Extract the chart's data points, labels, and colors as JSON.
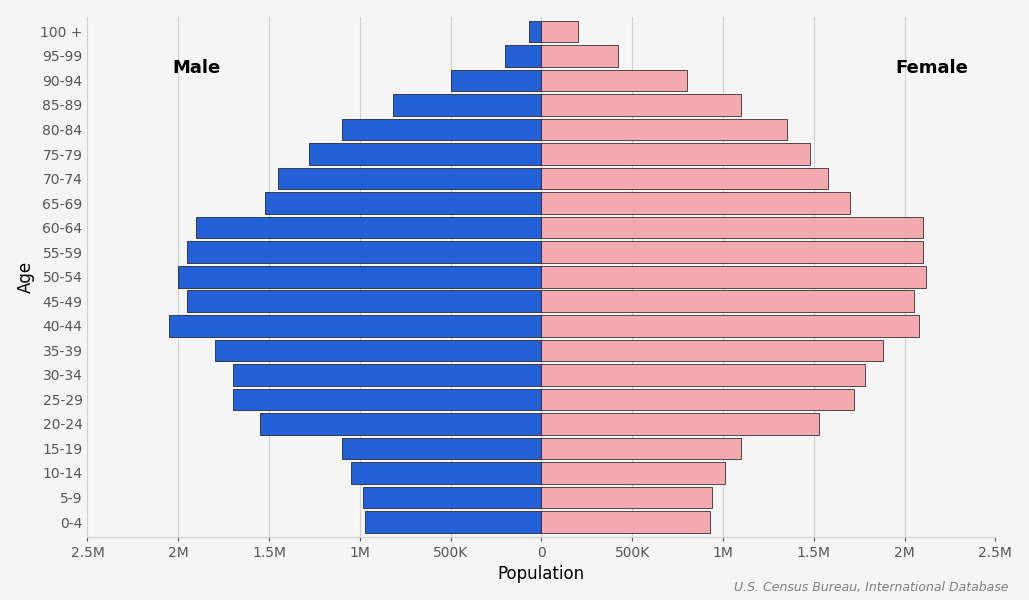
{
  "age_groups": [
    "0-4",
    "5-9",
    "10-14",
    "15-19",
    "20-24",
    "25-29",
    "30-34",
    "35-39",
    "40-44",
    "45-49",
    "50-54",
    "55-59",
    "60-64",
    "65-69",
    "70-74",
    "75-79",
    "80-84",
    "85-89",
    "90-94",
    "95-99",
    "100 +"
  ],
  "male": [
    970000,
    980000,
    1050000,
    1100000,
    1550000,
    1700000,
    1700000,
    1800000,
    2050000,
    1950000,
    2000000,
    1950000,
    1900000,
    1520000,
    1450000,
    1280000,
    1100000,
    820000,
    500000,
    200000,
    70000
  ],
  "female": [
    930000,
    940000,
    1010000,
    1100000,
    1530000,
    1720000,
    1780000,
    1880000,
    2080000,
    2050000,
    2120000,
    2100000,
    2100000,
    1700000,
    1580000,
    1480000,
    1350000,
    1100000,
    800000,
    420000,
    200000
  ],
  "male_color": "#2460D8",
  "female_color": "#F4A8B0",
  "male_label": "Male",
  "female_label": "Female",
  "xlabel": "Population",
  "ylabel": "Age",
  "xlim": 2500000,
  "xtick_values": [
    -2500000,
    -2000000,
    -1500000,
    -1000000,
    -500000,
    0,
    500000,
    1000000,
    1500000,
    2000000,
    2500000
  ],
  "xtick_labels": [
    "2.5M",
    "2M",
    "1.5M",
    "1M",
    "500K",
    "0",
    "500K",
    "1M",
    "1.5M",
    "2M",
    "2.5M"
  ],
  "source_text": "U.S. Census Bureau, International Database",
  "bar_edgecolor": "#111111",
  "bar_linewidth": 0.5,
  "background_color": "#f5f5f5",
  "grid_color": "#d0d0d0",
  "label_fontsize": 12,
  "tick_fontsize": 10,
  "annotation_fontsize": 12,
  "source_fontsize": 9
}
